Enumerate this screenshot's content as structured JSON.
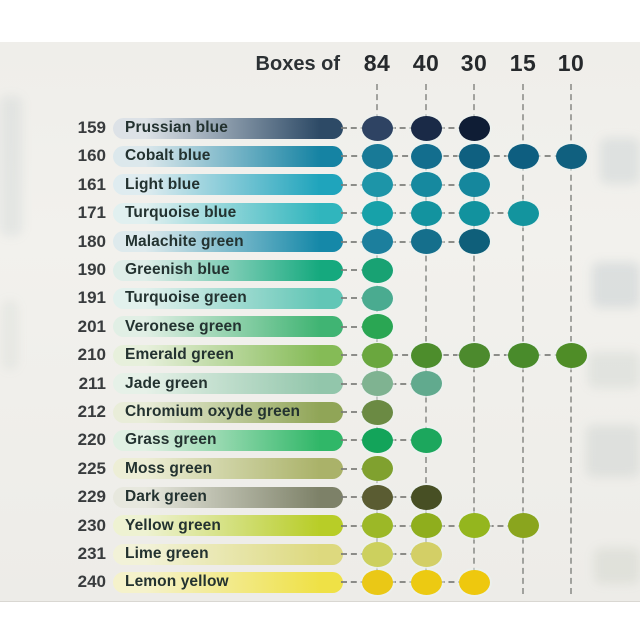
{
  "chart_data": {
    "type": "table",
    "header_label": "Boxes of",
    "columns": [
      "84",
      "40",
      "30",
      "15",
      "10"
    ],
    "rows": [
      {
        "number": "159",
        "name": "Prussian blue",
        "boxes": [
          "84",
          "40",
          "30"
        ],
        "dot_colors": [
          "#2e4363",
          "#1a2a47",
          "#0f1d35"
        ],
        "bar": [
          "#dde2e7",
          "#2d4a66"
        ]
      },
      {
        "number": "160",
        "name": "Cobalt blue",
        "boxes": [
          "84",
          "40",
          "30",
          "15",
          "10"
        ],
        "dot_colors": [
          "#187a97",
          "#136e8e",
          "#0f6080",
          "#0e5e80",
          "#10607f"
        ],
        "bar": [
          "#dce8ec",
          "#1583a3"
        ]
      },
      {
        "number": "161",
        "name": "Light blue",
        "boxes": [
          "84",
          "40",
          "30"
        ],
        "dot_colors": [
          "#1d95a8",
          "#16899f",
          "#15879d"
        ],
        "bar": [
          "#dfecf0",
          "#1fa4bc"
        ]
      },
      {
        "number": "171",
        "name": "Turquoise blue",
        "boxes": [
          "84",
          "40",
          "30",
          "15"
        ],
        "dot_colors": [
          "#17a1a9",
          "#13939f",
          "#12929e",
          "#13949e"
        ],
        "bar": [
          "#e1f0f0",
          "#30b5bd"
        ]
      },
      {
        "number": "180",
        "name": "Malachite green",
        "boxes": [
          "84",
          "40",
          "30"
        ],
        "dot_colors": [
          "#1c7f9d",
          "#156f8c",
          "#0f5f7a"
        ],
        "bar": [
          "#deeaed",
          "#1588a8"
        ]
      },
      {
        "number": "190",
        "name": "Greenish blue",
        "boxes": [
          "84"
        ],
        "dot_colors": [
          "#18a273"
        ],
        "bar": [
          "#dfeee9",
          "#15a97e"
        ]
      },
      {
        "number": "191",
        "name": "Turquoise green",
        "boxes": [
          "84"
        ],
        "dot_colors": [
          "#4aab90"
        ],
        "bar": [
          "#e2f1ed",
          "#62c6b6"
        ]
      },
      {
        "number": "201",
        "name": "Veronese green",
        "boxes": [
          "84"
        ],
        "dot_colors": [
          "#2aa653"
        ],
        "bar": [
          "#e1efe5",
          "#40b473"
        ]
      },
      {
        "number": "210",
        "name": "Emerald green",
        "boxes": [
          "84",
          "40",
          "30",
          "15",
          "10"
        ],
        "dot_colors": [
          "#6aa73e",
          "#4d8d2c",
          "#4c8a2d",
          "#498b2b",
          "#4f8d27"
        ],
        "bar": [
          "#e7f0dc",
          "#85bb56"
        ]
      },
      {
        "number": "211",
        "name": "Jade green",
        "boxes": [
          "84",
          "40"
        ],
        "dot_colors": [
          "#7fb391",
          "#61aa8e"
        ],
        "bar": [
          "#e6f1e8",
          "#92c6ab"
        ]
      },
      {
        "number": "212",
        "name": "Chromium oxyde green",
        "boxes": [
          "84"
        ],
        "dot_colors": [
          "#6b8a43"
        ],
        "bar": [
          "#e9edd9",
          "#90a557"
        ]
      },
      {
        "number": "220",
        "name": "Grass green",
        "boxes": [
          "84",
          "40"
        ],
        "dot_colors": [
          "#13a45a",
          "#1ca75d"
        ],
        "bar": [
          "#e1f1e4",
          "#30b768"
        ]
      },
      {
        "number": "225",
        "name": "Moss green",
        "boxes": [
          "84"
        ],
        "dot_colors": [
          "#80a12f"
        ],
        "bar": [
          "#edeed6",
          "#aab269"
        ]
      },
      {
        "number": "229",
        "name": "Dark green",
        "boxes": [
          "84",
          "40"
        ],
        "dot_colors": [
          "#5a5c32",
          "#474f24"
        ],
        "bar": [
          "#e7e8de",
          "#7d8168"
        ]
      },
      {
        "number": "230",
        "name": "Yellow green",
        "boxes": [
          "84",
          "40",
          "30",
          "15"
        ],
        "dot_colors": [
          "#9cb827",
          "#8fae1d",
          "#94b61e",
          "#8aa51e"
        ],
        "bar": [
          "#eef2d2",
          "#b8cd27"
        ]
      },
      {
        "number": "231",
        "name": "Lime green",
        "boxes": [
          "84",
          "40"
        ],
        "dot_colors": [
          "#ccd05e",
          "#d3cf66"
        ],
        "bar": [
          "#f2f2d8",
          "#ddd97e"
        ]
      },
      {
        "number": "240",
        "name": "Lemon yellow",
        "boxes": [
          "84",
          "40",
          "30"
        ],
        "dot_colors": [
          "#eac816",
          "#ecca12",
          "#eec80e"
        ],
        "bar": [
          "#f5f2cb",
          "#efe146"
        ]
      }
    ],
    "legend_position": "top",
    "grid": true,
    "colors": {
      "page_background": "#ffffff",
      "photo_background": "#f0efec",
      "guide_line": "#8f908c",
      "connector_line": "#7b7c78",
      "header_text": "#26292c",
      "number_text": "#393c3e",
      "name_text": "#233230"
    }
  }
}
